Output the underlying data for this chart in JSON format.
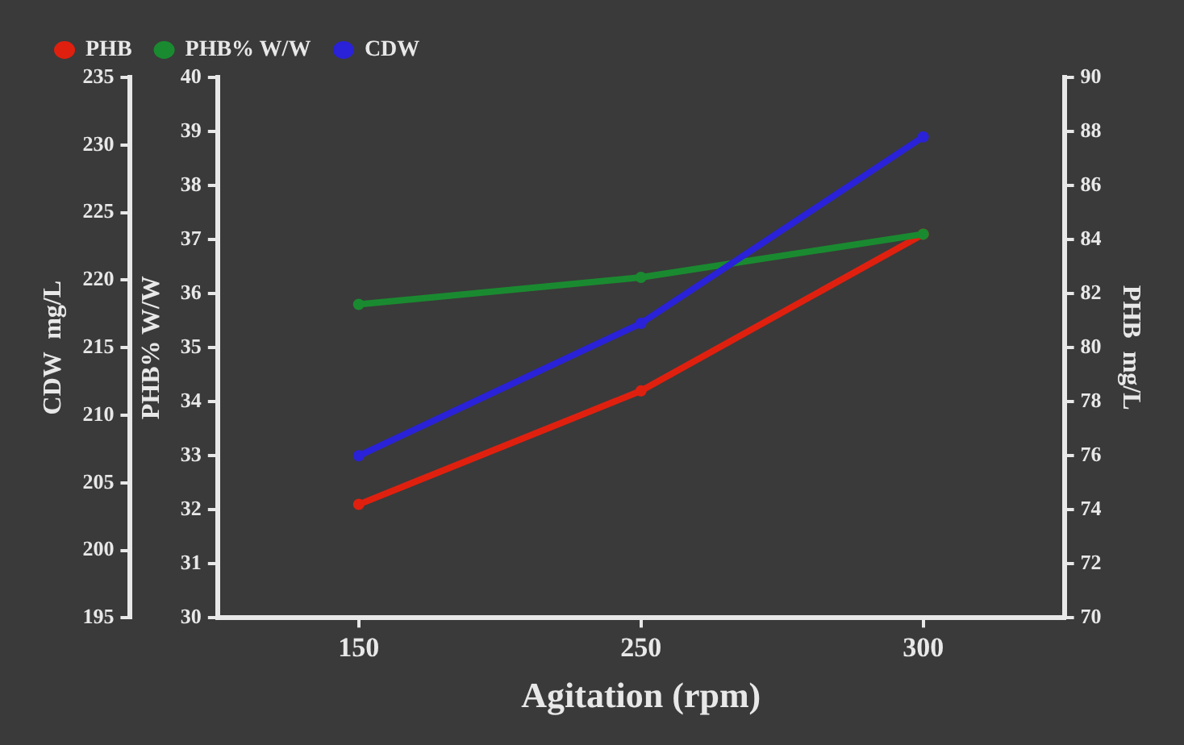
{
  "chart_data": {
    "type": "line",
    "xlabel": "Agitation (rpm)",
    "ylabel": "PHB% W/W",
    "y2label": "PHB  mg/L",
    "y3label": "CDW  mg/L",
    "categories": [
      "150",
      "250",
      "300"
    ],
    "series": [
      {
        "name": "PHB",
        "color": "#e0200f",
        "values": [
          74.2,
          78.4,
          84.2
        ],
        "axis": "y2"
      },
      {
        "name": "PHB% W/W",
        "color": "#1a8a30",
        "values": [
          35.8,
          36.3,
          37.1
        ],
        "axis": "y"
      },
      {
        "name": "CDW",
        "color": "#2a22d8",
        "values": [
          207.0,
          216.8,
          230.6
        ],
        "axis": "y3"
      }
    ],
    "ylim": [
      30,
      40
    ],
    "yticks": [
      30,
      31,
      32,
      33,
      34,
      35,
      36,
      37,
      38,
      39,
      40
    ],
    "y2lim": [
      70,
      90
    ],
    "y2ticks": [
      70,
      72,
      74,
      76,
      78,
      80,
      82,
      84,
      86,
      88,
      90
    ],
    "y3lim": [
      195,
      235
    ],
    "y3ticks": [
      195,
      200,
      205,
      210,
      215,
      220,
      225,
      230,
      235
    ],
    "grid": false,
    "legend": "top left",
    "marker": "circle",
    "line_style": "solid"
  }
}
